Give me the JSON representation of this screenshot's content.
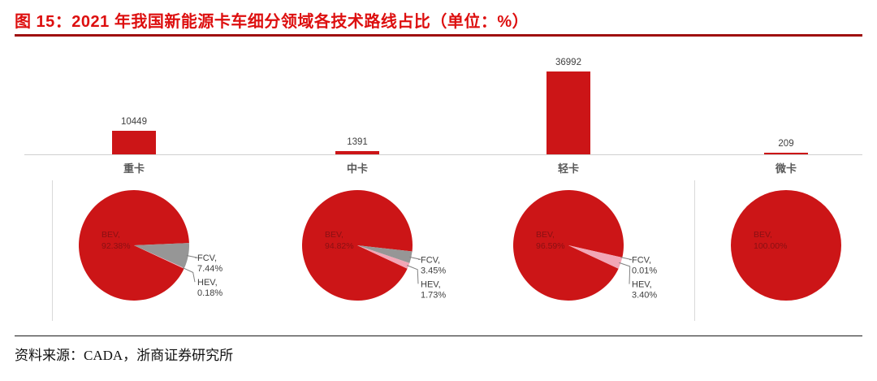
{
  "header": {
    "title": "图 15：2021 年我国新能源卡车细分领域各技术路线占比（单位：%）"
  },
  "footer": {
    "source": "资料来源：CADA，浙商证券研究所"
  },
  "colors": {
    "title_red": "#dd0f0f",
    "rule_red": "#a00f0f",
    "chart_red": "#cc1517",
    "fcv_gray": "#969696",
    "hev_pink": "#f2a6b6",
    "label_gray": "#595959",
    "callout_text": "#3f3f3f",
    "inside_label": "#8a1013",
    "axis_gray": "#cfcfcf",
    "leader_line": "#808080"
  },
  "chart_data": [
    {
      "type": "bar",
      "title": "",
      "categories": [
        "重卡",
        "中卡",
        "轻卡",
        "微卡"
      ],
      "values": [
        10449,
        1391,
        36992,
        209
      ],
      "value_labels": [
        "10449",
        "1391",
        "36992",
        "209"
      ],
      "ylim": [
        0,
        40000
      ],
      "grid": false,
      "legend": "none"
    },
    {
      "type": "pie",
      "category": "重卡",
      "slices": [
        {
          "label": "BEV",
          "value": 92.38,
          "display": "BEV, 92.38%",
          "color_key": "chart_red",
          "label_style": "inside"
        },
        {
          "label": "FCV",
          "value": 7.44,
          "display": "FCV, 7.44%",
          "color_key": "fcv_gray",
          "label_style": "callout"
        },
        {
          "label": "HEV",
          "value": 0.18,
          "display": "HEV, 0.18%",
          "color_key": "hev_pink",
          "label_style": "callout"
        }
      ]
    },
    {
      "type": "pie",
      "category": "中卡",
      "slices": [
        {
          "label": "BEV",
          "value": 94.82,
          "display": "BEV, 94.82%",
          "color_key": "chart_red",
          "label_style": "inside"
        },
        {
          "label": "FCV",
          "value": 3.45,
          "display": "FCV, 3.45%",
          "color_key": "fcv_gray",
          "label_style": "callout"
        },
        {
          "label": "HEV",
          "value": 1.73,
          "display": "HEV, 1.73%",
          "color_key": "hev_pink",
          "label_style": "callout"
        }
      ]
    },
    {
      "type": "pie",
      "category": "轻卡",
      "slices": [
        {
          "label": "BEV",
          "value": 96.59,
          "display": "BEV, 96.59%",
          "color_key": "chart_red",
          "label_style": "inside"
        },
        {
          "label": "FCV",
          "value": 0.01,
          "display": "FCV, 0.01%",
          "color_key": "fcv_gray",
          "label_style": "callout"
        },
        {
          "label": "HEV",
          "value": 3.4,
          "display": "HEV, 3.40%",
          "color_key": "hev_pink",
          "label_style": "callout"
        }
      ]
    },
    {
      "type": "pie",
      "category": "微卡",
      "slices": [
        {
          "label": "BEV",
          "value": 100.0,
          "display": "BEV, 100.00%",
          "color_key": "chart_red",
          "label_style": "inside"
        }
      ]
    }
  ]
}
